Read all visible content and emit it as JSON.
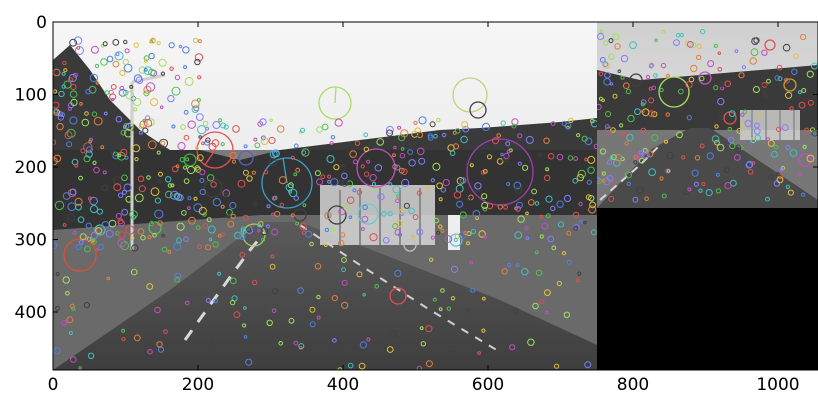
{
  "figure": {
    "x_ticks": [
      "0",
      "200",
      "400",
      "600",
      "800",
      "1000"
    ],
    "y_ticks": [
      "0",
      "100",
      "200",
      "300",
      "400"
    ]
  },
  "image": {
    "description_terms": [
      "road scene",
      "feature keypoints",
      "image pyramid"
    ],
    "background_color": "#000000"
  }
}
